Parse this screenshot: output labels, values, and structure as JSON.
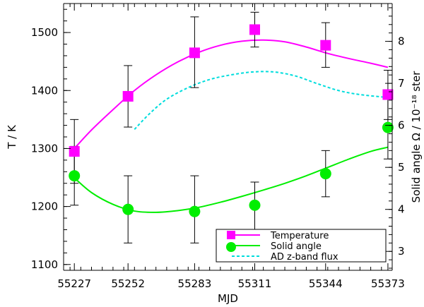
{
  "chart_data": {
    "type": "scatter",
    "x_axis": {
      "label": "MJD",
      "range": [
        55222,
        55375
      ],
      "ticks": [
        55227,
        55252,
        55283,
        55311,
        55344,
        55373
      ]
    },
    "y_axis_left": {
      "label": "T / K",
      "range": [
        1090,
        1550
      ],
      "ticks": [
        1100,
        1200,
        1300,
        1400,
        1500
      ]
    },
    "y_axis_right": {
      "label": "Solid angle Ω / 10⁻¹⁸ ster",
      "range": [
        2.55,
        8.9
      ],
      "ticks": [
        3,
        4,
        5,
        6,
        7,
        8
      ]
    },
    "series": [
      {
        "name": "Temperature",
        "axis": "left",
        "color": "#ff00ff",
        "marker": "square",
        "x": [
          55227,
          55252,
          55283,
          55311,
          55344,
          55373
        ],
        "y": [
          1295,
          1390,
          1465,
          1505,
          1478,
          1393
        ],
        "yerr": [
          1295,
          1390,
          1465,
          1505,
          1478,
          1393
        ],
        "err_low": [
          1240,
          1337,
          1405,
          1475,
          1440,
          1350
        ],
        "err_high": [
          1350,
          1443,
          1527,
          1535,
          1517,
          1435
        ]
      },
      {
        "name": "Solid angle",
        "axis": "right",
        "color": "#00ee00",
        "marker": "circle",
        "x": [
          55227,
          55252,
          55283,
          55311,
          55344,
          55373
        ],
        "y": [
          4.8,
          4.0,
          3.95,
          4.1,
          4.85,
          5.95
        ],
        "err_low": [
          4.1,
          3.2,
          3.2,
          3.45,
          4.3,
          5.2
        ],
        "err_high": [
          5.5,
          4.8,
          4.8,
          4.65,
          5.4,
          6.7
        ]
      },
      {
        "name": "Temperature",
        "axis": "left",
        "color": "#ff00ff",
        "style": "solid-line",
        "x": [
          55227,
          55235,
          55245,
          55255,
          55265,
          55275,
          55285,
          55295,
          55305,
          55315,
          55325,
          55335,
          55345,
          55355,
          55365,
          55373
        ],
        "y": [
          1300,
          1332,
          1367,
          1400,
          1427,
          1449,
          1466,
          1478,
          1485,
          1487,
          1484,
          1475,
          1464,
          1455,
          1447,
          1440
        ]
      },
      {
        "name": "Solid angle",
        "axis": "right",
        "color": "#00ee00",
        "style": "solid-line",
        "x": [
          55227,
          55235,
          55245,
          55255,
          55265,
          55275,
          55285,
          55295,
          55305,
          55315,
          55325,
          55335,
          55345,
          55355,
          55365,
          55373
        ],
        "y": [
          4.75,
          4.4,
          4.12,
          3.96,
          3.93,
          3.97,
          4.05,
          4.17,
          4.31,
          4.46,
          4.62,
          4.8,
          5.0,
          5.2,
          5.38,
          5.48
        ]
      },
      {
        "name": "AD z-band flux",
        "axis": "left",
        "color": "#00dddd",
        "style": "dashed-line",
        "x": [
          55255,
          55262,
          55270,
          55280,
          55290,
          55300,
          55310,
          55320,
          55330,
          55340,
          55350,
          55360,
          55373
        ],
        "y": [
          1333,
          1360,
          1385,
          1405,
          1419,
          1427,
          1432,
          1432,
          1425,
          1412,
          1400,
          1393,
          1388
        ]
      }
    ],
    "legend": {
      "position": "bottom-right",
      "entries": [
        {
          "label": "Temperature",
          "color": "#ff00ff",
          "marker": "square",
          "line": "solid"
        },
        {
          "label": "Solid angle",
          "color": "#00ee00",
          "marker": "circle",
          "line": "solid"
        },
        {
          "label": "AD z-band flux",
          "color": "#00dddd",
          "marker": "none",
          "line": "dashed"
        }
      ]
    },
    "grid": false
  }
}
